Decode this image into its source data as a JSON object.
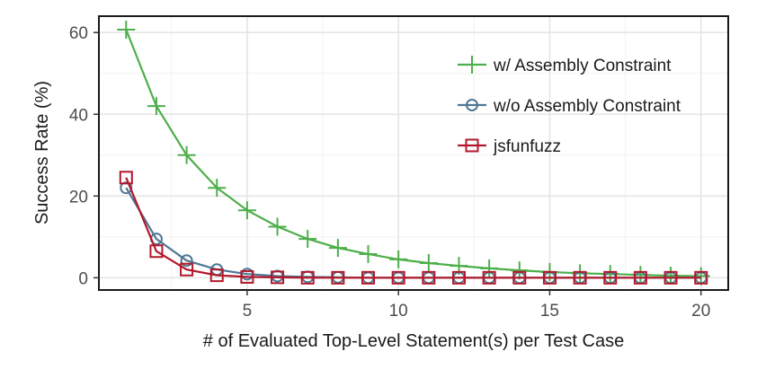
{
  "chart_data": {
    "type": "line",
    "xlabel": "# of Evaluated Top-Level Statement(s) per Test Case",
    "ylabel": "Success Rate (%)",
    "xlim": [
      0.1,
      20.9
    ],
    "ylim": [
      -3,
      64
    ],
    "xticks": [
      5,
      10,
      15,
      20
    ],
    "yticks": [
      0,
      20,
      40,
      60
    ],
    "grid": true,
    "legend_position": "top-right",
    "x": [
      1,
      2,
      3,
      4,
      5,
      6,
      7,
      8,
      9,
      10,
      11,
      12,
      13,
      14,
      15,
      16,
      17,
      18,
      19,
      20
    ],
    "series": [
      {
        "name": "w/ Assembly Constraint",
        "color": "#4daf4a",
        "marker": "plus",
        "values": [
          60.7,
          42,
          30,
          22,
          16.5,
          12.5,
          9.5,
          7.3,
          5.8,
          4.5,
          3.6,
          2.9,
          2.3,
          1.8,
          1.4,
          1.1,
          0.9,
          0.7,
          0.5,
          0.4
        ]
      },
      {
        "name": "w/o Assembly Constraint",
        "color": "#4f7794",
        "marker": "circle",
        "values": [
          22,
          9.5,
          4.2,
          2,
          0.9,
          0.4,
          0.2,
          0.1,
          0,
          0,
          0,
          0,
          0,
          0,
          0,
          0,
          0,
          0,
          0,
          0
        ]
      },
      {
        "name": "jsfunfuzz",
        "color": "#b2182b",
        "marker": "square",
        "values": [
          24.5,
          6.5,
          2,
          0.6,
          0.2,
          0.1,
          0,
          0,
          0,
          0,
          0,
          0,
          0,
          0,
          0,
          0,
          0,
          0,
          0,
          0
        ]
      }
    ]
  }
}
